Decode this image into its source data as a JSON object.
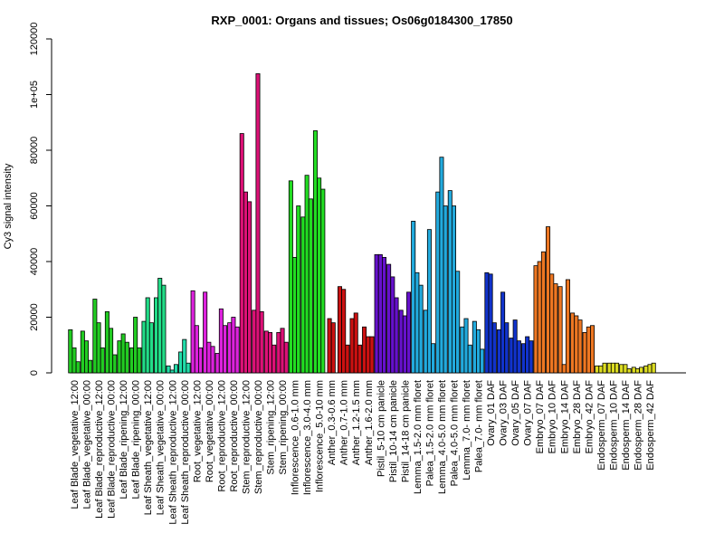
{
  "chart_data": {
    "type": "bar",
    "title": "RXP_0001: Organs and tissues; Os06g0184300_17850",
    "xlabel": "",
    "ylabel": "Cy3 signal intensity",
    "ylim": [
      0,
      120000
    ],
    "yticks": [
      0,
      20000,
      40000,
      60000,
      80000,
      100000,
      120000
    ],
    "ytick_labels": [
      "0",
      "20000",
      "40000",
      "60000",
      "80000",
      "1e+05",
      "120000"
    ],
    "grid": false,
    "groups": [
      {
        "label": "Leaf Blade_vegetative_12:00",
        "color": "#22cc22",
        "values": [
          15500,
          9000,
          4000
        ]
      },
      {
        "label": "Leaf Blade_vegetative_00:00",
        "color": "#22cc22",
        "values": [
          15000,
          11500,
          4500
        ]
      },
      {
        "label": "Leaf Blade_reproductive_12:00",
        "color": "#22cc22",
        "values": [
          26500,
          18000,
          9000
        ]
      },
      {
        "label": "Leaf Blade_reproductive_00:00",
        "color": "#22cc22",
        "values": [
          22000,
          16000,
          6500
        ]
      },
      {
        "label": "Leaf Blade_ripening_12:00",
        "color": "#22cc22",
        "values": [
          11500,
          14000,
          11000
        ]
      },
      {
        "label": "Leaf Blade_ripening_00:00",
        "color": "#22cc22",
        "values": [
          9000,
          20000,
          9000
        ]
      },
      {
        "label": "Leaf Sheath_vegetative_12:00",
        "color": "#22dd88",
        "values": [
          18500,
          27000,
          18000
        ]
      },
      {
        "label": "Leaf Sheath_vegetative_00:00",
        "color": "#22dd88",
        "values": [
          27000,
          34000,
          31500
        ]
      },
      {
        "label": "Leaf Sheath_reproductive_12:00",
        "color": "#22ddaa",
        "values": [
          2500,
          1000,
          3000
        ]
      },
      {
        "label": "Leaf Sheath_reproductive_00:00",
        "color": "#22ddaa",
        "values": [
          7500,
          12000,
          3500
        ]
      },
      {
        "label": "Root_vegetative_12:00",
        "color": "#dd22dd",
        "values": [
          29500,
          17000,
          9000
        ]
      },
      {
        "label": "Root_vegetative_00:00",
        "color": "#dd22dd",
        "values": [
          29000,
          11000,
          9500
        ]
      },
      {
        "label": "Root_reproductive_12:00",
        "color": "#dd22dd",
        "values": [
          7000,
          23000,
          17000
        ]
      },
      {
        "label": "Root_reproductive_00:00",
        "color": "#dd22dd",
        "values": [
          18000,
          20000,
          16500
        ]
      },
      {
        "label": "Stem_reproductive_12:00",
        "color": "#dd1177",
        "values": [
          86000,
          65000,
          61500
        ]
      },
      {
        "label": "Stem_reproductive_00:00",
        "color": "#dd1177",
        "values": [
          22500,
          107500,
          22000
        ]
      },
      {
        "label": "Stem_ripening_12:00",
        "color": "#dd1177",
        "values": [
          15000,
          14500,
          10000
        ]
      },
      {
        "label": "Stem_ripening_00:00",
        "color": "#dd1177",
        "values": [
          14500,
          16000,
          11000
        ]
      },
      {
        "label": "Inflorescence_0.6-1.0 mm",
        "color": "#22dd22",
        "values": [
          69000,
          41500,
          60000
        ]
      },
      {
        "label": "Inflorescence_3.0-4.0 mm",
        "color": "#22dd22",
        "values": [
          56000,
          71000,
          62500
        ]
      },
      {
        "label": "Inflorescence_5.0-10 mm",
        "color": "#22dd22",
        "values": [
          87000,
          70000,
          66000
        ]
      },
      {
        "label": "Anther_0.3-0.6 mm",
        "color": "#cc1111",
        "values": [
          19500,
          18000
        ]
      },
      {
        "label": "Anther_0.7-1.0 mm",
        "color": "#cc1111",
        "values": [
          31000,
          30000,
          10000
        ]
      },
      {
        "label": "Anther_1.2-1.5 mm",
        "color": "#cc1111",
        "values": [
          19500,
          21500,
          10000
        ]
      },
      {
        "label": "Anther_1.6-2.0 mm",
        "color": "#cc1111",
        "values": [
          16500,
          13000,
          13000
        ]
      },
      {
        "label": "Pistil_5-10 cm panicle",
        "color": "#6611cc",
        "values": [
          42500,
          42500,
          41500
        ]
      },
      {
        "label": "Pistil_10-14 cm panicle",
        "color": "#6611cc",
        "values": [
          39000,
          34500,
          27000
        ]
      },
      {
        "label": "Pistil_14-18 cm panicle",
        "color": "#6611cc",
        "values": [
          22500,
          20500,
          29000
        ]
      },
      {
        "label": "Lemma_1.5-2.0 mm floret",
        "color": "#22aadd",
        "values": [
          54500,
          36000,
          31500
        ]
      },
      {
        "label": "Palea_1.5-2.0 mm floret",
        "color": "#22aadd",
        "values": [
          22500,
          51500,
          10500
        ]
      },
      {
        "label": "Lemma_4.0-5.0 mm floret",
        "color": "#22aadd",
        "values": [
          65000,
          77500,
          60000
        ]
      },
      {
        "label": "Palea_4.0-5.0 mm floret",
        "color": "#22aadd",
        "values": [
          65500,
          60000,
          36500
        ]
      },
      {
        "label": "Lemma_7.0- mm floret",
        "color": "#22aadd",
        "values": [
          16500,
          19500,
          10000
        ]
      },
      {
        "label": "Palea_7.0- mm floret",
        "color": "#22aadd",
        "values": [
          18500,
          15500,
          8500
        ]
      },
      {
        "label": "Ovary_01 DAF",
        "color": "#1133cc",
        "values": [
          36000,
          35500,
          18000
        ]
      },
      {
        "label": "Ovary_03 DAF",
        "color": "#1133cc",
        "values": [
          15500,
          29000,
          18000
        ]
      },
      {
        "label": "Ovary_05 DAF",
        "color": "#1133cc",
        "values": [
          12500,
          19000,
          11500
        ]
      },
      {
        "label": "Ovary_07 DAF",
        "color": "#1133cc",
        "values": [
          10500,
          13000,
          11500
        ]
      },
      {
        "label": "Embryo_07 DAF",
        "color": "#ee7722",
        "values": [
          38500,
          40000,
          43500
        ]
      },
      {
        "label": "Embryo_10 DAF",
        "color": "#ee7722",
        "values": [
          52500,
          35500,
          32000
        ]
      },
      {
        "label": "Embryo_14 DAF",
        "color": "#ee7722",
        "values": [
          31000,
          3000,
          33500
        ]
      },
      {
        "label": "Embryo_28 DAF",
        "color": "#ee7722",
        "values": [
          21500,
          20500,
          19000
        ]
      },
      {
        "label": "Embryo_42 DAF",
        "color": "#ee7722",
        "values": [
          14500,
          16500,
          17000
        ]
      },
      {
        "label": "Endosperm_07 DAF",
        "color": "#dddd22",
        "values": [
          2500,
          2500,
          3500
        ]
      },
      {
        "label": "Endosperm_10 DAF",
        "color": "#dddd22",
        "values": [
          3500,
          3500,
          3500
        ]
      },
      {
        "label": "Endosperm_14 DAF",
        "color": "#dddd22",
        "values": [
          3000,
          3000,
          1500
        ]
      },
      {
        "label": "Endosperm_28 DAF",
        "color": "#dddd22",
        "values": [
          2000,
          1500,
          2000
        ]
      },
      {
        "label": "Endosperm_42 DAF",
        "color": "#dddd22",
        "values": [
          2500,
          3000,
          3500
        ]
      }
    ]
  }
}
